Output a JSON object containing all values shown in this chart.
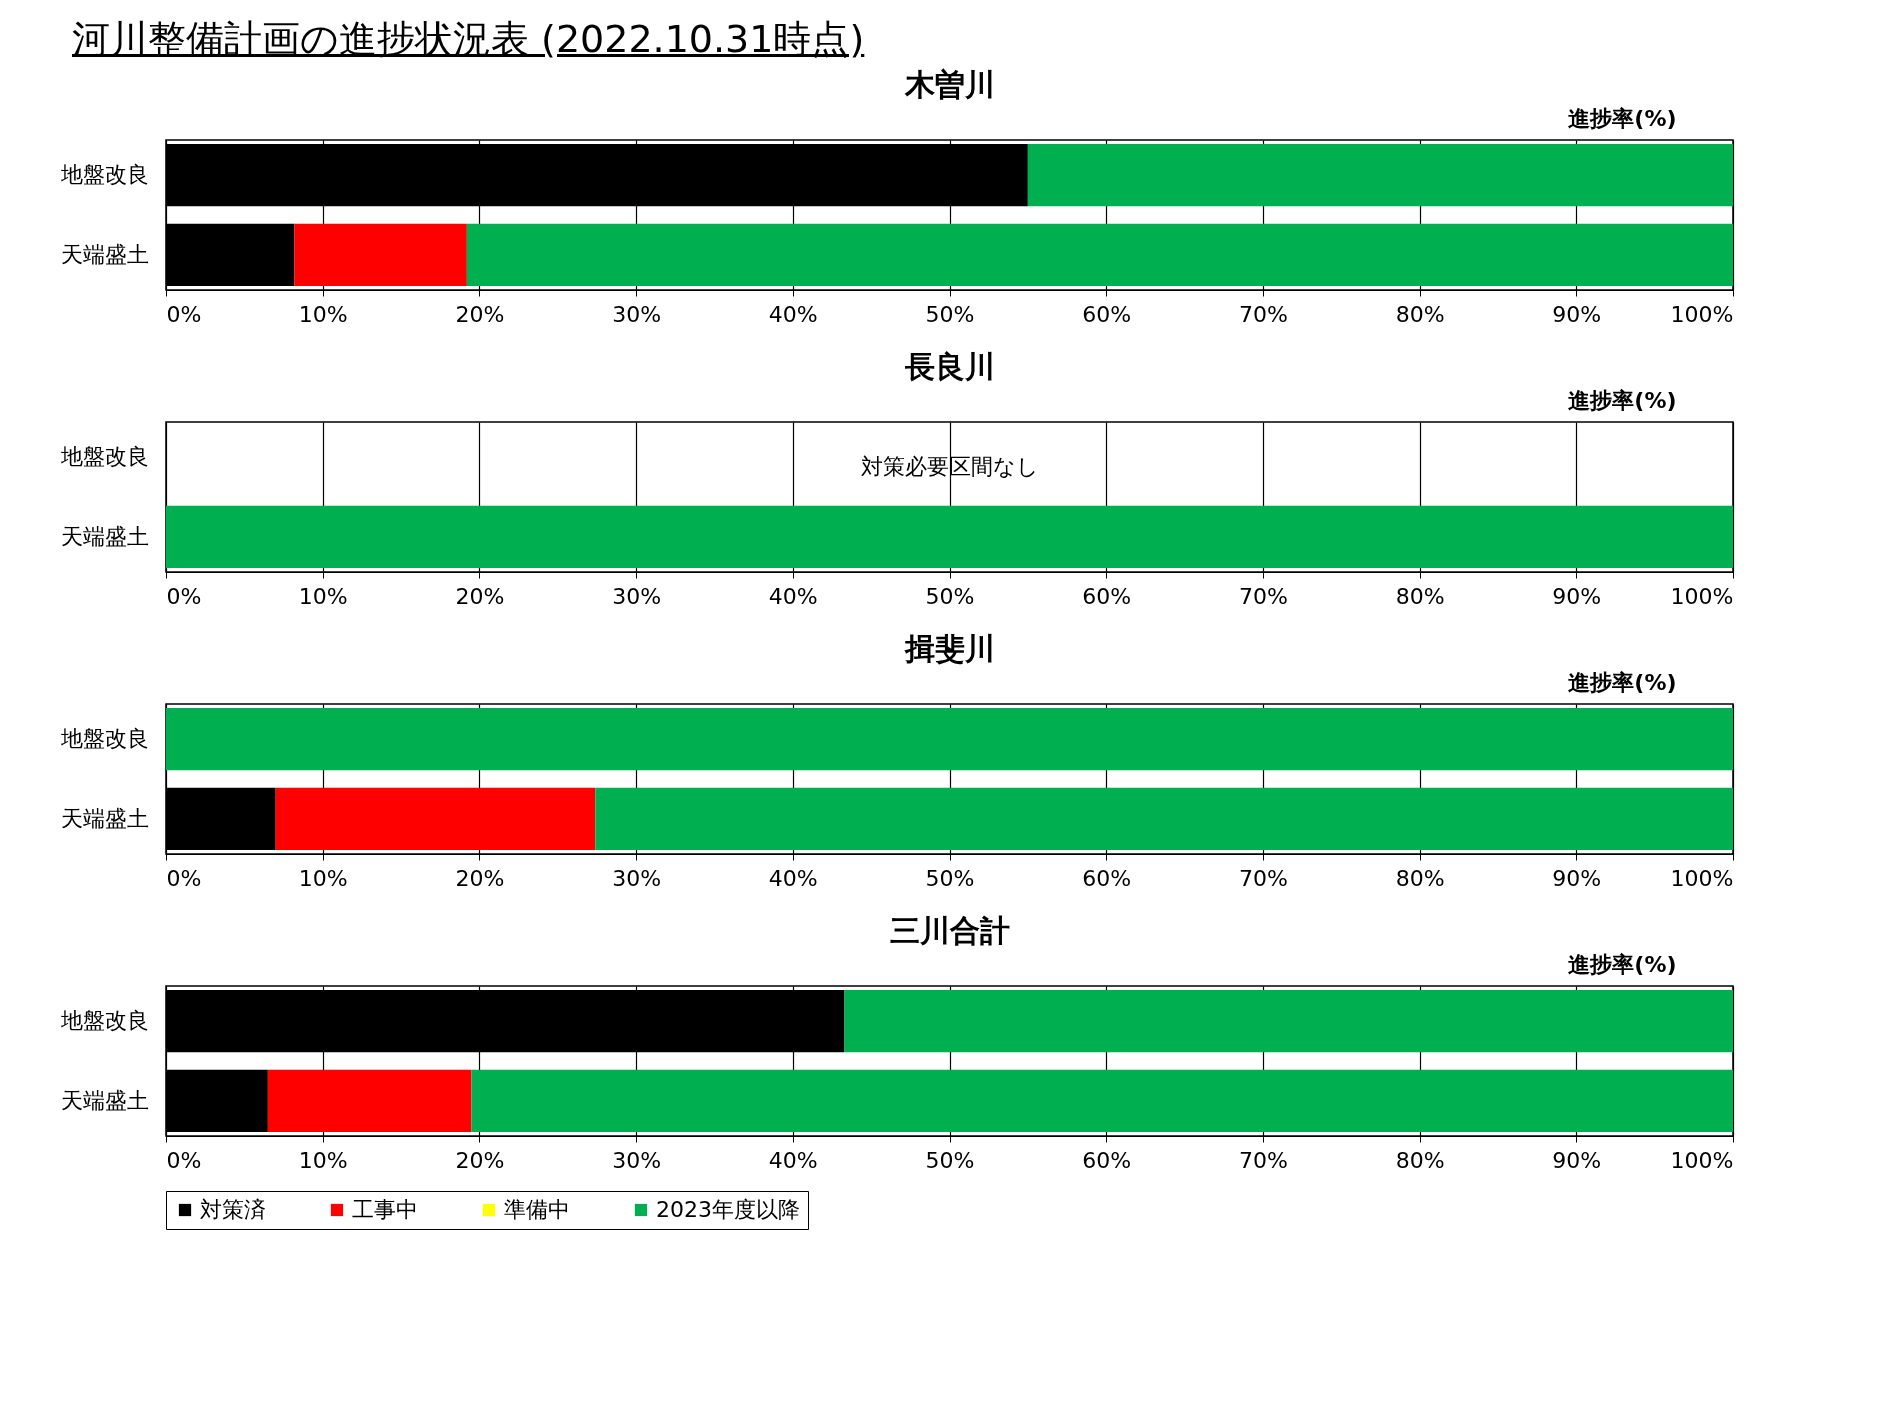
{
  "chart_data": [
    {
      "type": "bar",
      "orientation": "horizontal",
      "stacked": true,
      "title": "河川整備計画の進捗状況表 (2022.10.31時点)",
      "subtitle": "木曽川",
      "xlabel": "進捗率(%)",
      "categories": [
        "地盤改良",
        "天端盛土"
      ],
      "series": [
        {
          "color": "#000000",
          "values": [
            55.0,
            8.2
          ]
        },
        {
          "color": "#ff0000",
          "values": [
            0,
            11.0
          ]
        },
        {
          "color": "#ffff00",
          "values": [
            0,
            0
          ]
        },
        {
          "color": "#00b050",
          "values": [
            45.0,
            80.8
          ]
        }
      ],
      "xlim": [
        0,
        100
      ],
      "xticks": [
        {
          "value": 0,
          "label": "0%"
        },
        {
          "value": 10,
          "label": "10%"
        },
        {
          "value": 20,
          "label": "20%"
        },
        {
          "value": 30,
          "label": "30%"
        },
        {
          "value": 40,
          "label": "40%"
        },
        {
          "value": 50,
          "label": "50%"
        },
        {
          "value": 60,
          "label": "60%"
        },
        {
          "value": 70,
          "label": "70%"
        },
        {
          "value": 80,
          "label": "80%"
        },
        {
          "value": 90,
          "label": "90%"
        },
        {
          "value": 100,
          "label": "100%"
        }
      ],
      "grid": "x"
    },
    {
      "type": "bar",
      "orientation": "horizontal",
      "stacked": true,
      "title": "長良川",
      "xlabel": "進捗率(%)",
      "categories": [
        "地盤改良",
        "天端盛土"
      ],
      "series": [
        {
          "color": "#000000",
          "values": [
            null,
            0
          ]
        },
        {
          "color": "#ff0000",
          "values": [
            null,
            0
          ]
        },
        {
          "color": "#ffff00",
          "values": [
            null,
            0
          ]
        },
        {
          "color": "#00b050",
          "values": [
            null,
            100
          ]
        }
      ],
      "annotations": [
        "対策必要区間なし"
      ],
      "xlim": [
        0,
        100
      ],
      "xticks": [
        {
          "value": 0,
          "label": "0%"
        },
        {
          "value": 10,
          "label": "10%"
        },
        {
          "value": 20,
          "label": "20%"
        },
        {
          "value": 30,
          "label": "30%"
        },
        {
          "value": 40,
          "label": "40%"
        },
        {
          "value": 50,
          "label": "50%"
        },
        {
          "value": 60,
          "label": "60%"
        },
        {
          "value": 70,
          "label": "70%"
        },
        {
          "value": 80,
          "label": "80%"
        },
        {
          "value": 90,
          "label": "90%"
        },
        {
          "value": 100,
          "label": "100%"
        }
      ],
      "grid": "x"
    },
    {
      "type": "bar",
      "orientation": "horizontal",
      "stacked": true,
      "title": "揖斐川",
      "xlabel": "進捗率(%)",
      "categories": [
        "地盤改良",
        "天端盛土"
      ],
      "series": [
        {
          "color": "#000000",
          "values": [
            0,
            7.0
          ]
        },
        {
          "color": "#ff0000",
          "values": [
            0,
            20.4
          ]
        },
        {
          "color": "#ffff00",
          "values": [
            0,
            0
          ]
        },
        {
          "color": "#00b050",
          "values": [
            100,
            72.6
          ]
        }
      ],
      "xlim": [
        0,
        100
      ],
      "xticks": [
        {
          "value": 0,
          "label": "0%"
        },
        {
          "value": 10,
          "label": "10%"
        },
        {
          "value": 20,
          "label": "20%"
        },
        {
          "value": 30,
          "label": "30%"
        },
        {
          "value": 40,
          "label": "40%"
        },
        {
          "value": 50,
          "label": "50%"
        },
        {
          "value": 60,
          "label": "60%"
        },
        {
          "value": 70,
          "label": "70%"
        },
        {
          "value": 80,
          "label": "80%"
        },
        {
          "value": 90,
          "label": "90%"
        },
        {
          "value": 100,
          "label": "100%"
        }
      ],
      "grid": "x"
    },
    {
      "type": "bar",
      "orientation": "horizontal",
      "stacked": true,
      "title": "三川合計",
      "xlabel": "進捗率(%)",
      "categories": [
        "地盤改良",
        "天端盛土"
      ],
      "series": [
        {
          "name": "対策済",
          "color": "#000000",
          "values": [
            43.3,
            6.5
          ]
        },
        {
          "name": "工事中",
          "color": "#ff0000",
          "values": [
            0,
            13.0
          ]
        },
        {
          "name": "準備中",
          "color": "#ffff00",
          "values": [
            0,
            0
          ]
        },
        {
          "name": "2023年度以降",
          "color": "#00b050",
          "values": [
            56.7,
            80.5
          ]
        }
      ],
      "xlim": [
        0,
        100
      ],
      "xticks": [
        {
          "value": 0,
          "label": "0%"
        },
        {
          "value": 10,
          "label": "10%"
        },
        {
          "value": 20,
          "label": "20%"
        },
        {
          "value": 30,
          "label": "30%"
        },
        {
          "value": 40,
          "label": "40%"
        },
        {
          "value": 50,
          "label": "50%"
        },
        {
          "value": 60,
          "label": "60%"
        },
        {
          "value": 70,
          "label": "70%"
        },
        {
          "value": 80,
          "label": "80%"
        },
        {
          "value": 90,
          "label": "90%"
        },
        {
          "value": 100,
          "label": "100%"
        }
      ],
      "grid": "x",
      "legend": "bottom"
    }
  ]
}
